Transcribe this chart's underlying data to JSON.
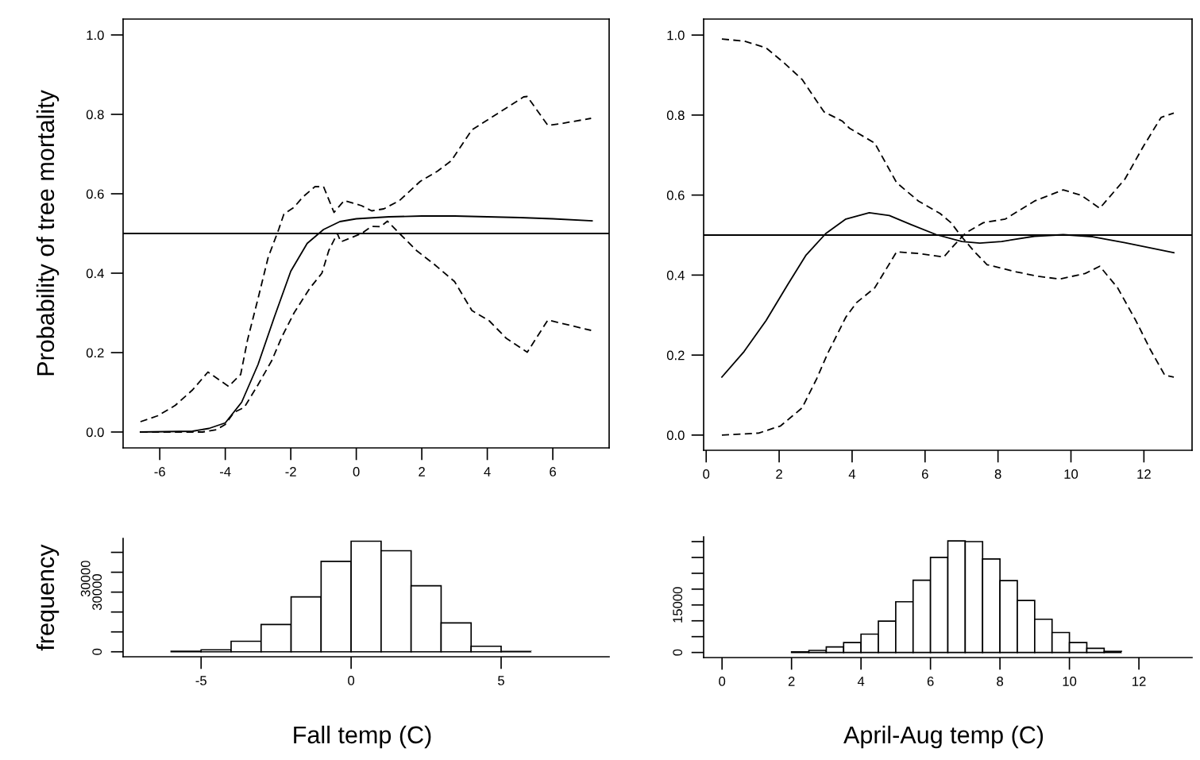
{
  "chart_data": [
    {
      "type": "line",
      "ylabel": "Probability of tree mortality",
      "xlim": [
        -7.12,
        7.72
      ],
      "ylim": [
        -0.04,
        1.04
      ],
      "xticks": [
        -6,
        -4,
        -2,
        0,
        2,
        4,
        6
      ],
      "yticks": [
        {
          "value": 0,
          "label": "0.0"
        },
        {
          "value": 0.2,
          "label": "0.2"
        },
        {
          "value": 0.4,
          "label": "0.4"
        },
        {
          "value": 0.6,
          "label": "0.6"
        },
        {
          "value": 0.8,
          "label": "0.8"
        },
        {
          "value": 1,
          "label": "1.0"
        }
      ],
      "ref_lines": [
        {
          "axis": "y",
          "value": 0.5,
          "color": "#000000"
        }
      ],
      "series": [
        {
          "color": "#000000",
          "line_style": "solid",
          "x": [
            -6.59,
            -5.0,
            -4.5,
            -4.0,
            -3.5,
            -3.0,
            -2.5,
            -2.0,
            -1.5,
            -1.0,
            -0.5,
            0,
            1,
            2,
            3,
            4,
            5,
            6,
            7.2
          ],
          "values": [
            0,
            0.002,
            0.009,
            0.023,
            0.075,
            0.17,
            0.29,
            0.405,
            0.475,
            0.51,
            0.53,
            0.537,
            0.542,
            0.544,
            0.544,
            0.542,
            0.54,
            0.537,
            0.532
          ]
        },
        {
          "color": "#000000",
          "line_style": "dashed",
          "x": [
            -6.59,
            -6.06,
            -5.53,
            -5.0,
            -4.53,
            -3.9,
            -3.53,
            -3.32,
            -3.0,
            -2.69,
            -2.37,
            -2.21,
            -1.9,
            -1.63,
            -1.26,
            -1.0,
            -0.68,
            -0.37,
            0.16,
            0.47,
            0.84,
            1.32,
            1.95,
            2.48,
            2.9,
            3.53,
            3.95,
            4.37,
            5.11,
            5.22,
            5.85,
            6.27,
            7.17
          ],
          "values": [
            0.026,
            0.041,
            0.067,
            0.106,
            0.151,
            0.115,
            0.145,
            0.232,
            0.336,
            0.44,
            0.51,
            0.549,
            0.566,
            0.592,
            0.618,
            0.618,
            0.553,
            0.583,
            0.57,
            0.557,
            0.562,
            0.583,
            0.631,
            0.657,
            0.683,
            0.761,
            0.783,
            0.805,
            0.844,
            0.845,
            0.772,
            0.777,
            0.79
          ]
        },
        {
          "color": "#000000",
          "line_style": "dashed",
          "x": [
            -6.59,
            -4.69,
            -4.27,
            -4.0,
            -3.74,
            -3.42,
            -3.0,
            -2.58,
            -2.27,
            -1.9,
            -1.42,
            -1.05,
            -0.84,
            -0.58,
            -0.47,
            0.16,
            0.47,
            0.74,
            0.95,
            1.32,
            1.84,
            2.37,
            3.0,
            3.53,
            4.06,
            4.58,
            5.22,
            5.85,
            7.17
          ],
          "values": [
            0,
            0,
            0.006,
            0.019,
            0.049,
            0.062,
            0.119,
            0.18,
            0.24,
            0.3,
            0.362,
            0.4,
            0.457,
            0.5,
            0.479,
            0.5,
            0.518,
            0.517,
            0.531,
            0.5,
            0.457,
            0.423,
            0.379,
            0.306,
            0.28,
            0.236,
            0.201,
            0.282,
            0.256
          ]
        }
      ]
    },
    {
      "type": "line",
      "xlim": [
        -0.07,
        13.32
      ],
      "ylim": [
        -0.038,
        1.04
      ],
      "xticks": [
        0,
        2,
        4,
        6,
        8,
        10,
        12
      ],
      "yticks": [
        {
          "value": 0,
          "label": "0.0"
        },
        {
          "value": 0.2,
          "label": "0.2"
        },
        {
          "value": 0.4,
          "label": "0.4"
        },
        {
          "value": 0.6,
          "label": "0.6"
        },
        {
          "value": 0.8,
          "label": "0.8"
        },
        {
          "value": 1,
          "label": "1.0"
        }
      ],
      "ref_lines": [
        {
          "axis": "y",
          "value": 0.5,
          "color": "#000000"
        }
      ],
      "series": [
        {
          "color": "#000000",
          "line_style": "solid",
          "x": [
            0.43,
            1.04,
            1.64,
            2.24,
            2.73,
            3.28,
            3.83,
            4.47,
            5.02,
            5.62,
            6.31,
            7.01,
            7.5,
            8.1,
            9.0,
            9.79,
            10.59,
            11.48,
            12.82
          ],
          "values": [
            0.145,
            0.209,
            0.286,
            0.377,
            0.449,
            0.504,
            0.54,
            0.556,
            0.549,
            0.526,
            0.501,
            0.484,
            0.48,
            0.484,
            0.497,
            0.501,
            0.496,
            0.481,
            0.456
          ]
        },
        {
          "color": "#000000",
          "line_style": "dashed",
          "x": [
            0.43,
            1.04,
            1.64,
            2.14,
            2.63,
            3.23,
            3.73,
            3.93,
            4.62,
            5.22,
            5.82,
            6.41,
            6.71,
            7.01,
            7.36,
            7.7,
            8.5,
            9.1,
            9.69,
            10.39,
            10.79,
            11.28,
            11.78,
            12.18,
            12.57,
            12.82
          ],
          "values": [
            0.99,
            0.985,
            0.968,
            0.93,
            0.889,
            0.808,
            0.785,
            0.767,
            0.73,
            0.631,
            0.585,
            0.554,
            0.531,
            0.495,
            0.458,
            0.426,
            0.408,
            0.397,
            0.39,
            0.404,
            0.422,
            0.368,
            0.286,
            0.213,
            0.15,
            0.145
          ]
        },
        {
          "color": "#000000",
          "line_style": "dashed",
          "x": [
            0.43,
            1.44,
            2.04,
            2.63,
            3.03,
            3.33,
            3.83,
            4.12,
            4.62,
            5.22,
            5.82,
            6.51,
            6.81,
            7.11,
            7.6,
            8.2,
            9.0,
            9.79,
            10.29,
            10.79,
            11.48,
            11.98,
            12.47,
            12.82
          ],
          "values": [
            0,
            0.005,
            0.023,
            0.068,
            0.141,
            0.204,
            0.295,
            0.331,
            0.368,
            0.458,
            0.454,
            0.445,
            0.476,
            0.505,
            0.531,
            0.54,
            0.585,
            0.613,
            0.599,
            0.567,
            0.64,
            0.721,
            0.794,
            0.805
          ]
        }
      ]
    },
    {
      "type": "histogram",
      "ylabel": "frequency",
      "xlabel": "Fall temp (C)",
      "color": "#ffffff",
      "xlim": [
        -7.6,
        8.6
      ],
      "ylim": [
        -2500,
        57000
      ],
      "xticks": [
        -5,
        0,
        5
      ],
      "yticks": [
        0,
        {
          "value": 10000,
          "label": null
        },
        {
          "value": 20000,
          "label": null
        },
        30000,
        {
          "value": 40000,
          "label": null
        },
        {
          "value": 50000,
          "label": null
        }
      ],
      "annotations": [
        "30000"
      ],
      "bins": [
        -7,
        -6,
        -5,
        -4,
        -3,
        -2,
        -1,
        0,
        1,
        2,
        3,
        4,
        5,
        6,
        7,
        8
      ],
      "values": [
        0,
        300,
        1000,
        5300,
        13700,
        27600,
        45500,
        55600,
        50800,
        33200,
        14500,
        2800,
        200,
        0,
        0
      ]
    },
    {
      "type": "histogram",
      "xlabel": "April-Aug temp (C)",
      "color": "#ffffff",
      "xlim": [
        -0.53,
        13.53
      ],
      "ylim": [
        -1600,
        36500
      ],
      "xticks": [
        0,
        2,
        4,
        6,
        8,
        10,
        12
      ],
      "yticks": [
        0,
        {
          "value": 5000,
          "label": null
        },
        {
          "value": 10000,
          "label": null
        },
        15000,
        {
          "value": 20000,
          "label": null
        },
        {
          "value": 25000,
          "label": null
        },
        {
          "value": 30000,
          "label": null
        },
        {
          "value": 35000,
          "label": null
        }
      ],
      "bins": [
        0,
        0.5,
        1,
        1.5,
        2,
        2.5,
        3,
        3.5,
        4,
        4.5,
        5,
        5.5,
        6,
        6.5,
        7,
        7.5,
        8,
        8.5,
        9,
        9.5,
        10,
        10.5,
        11,
        11.5,
        12,
        12.5,
        13
      ],
      "values": [
        0,
        0,
        0,
        0,
        200,
        650,
        1750,
        3150,
        5800,
        9900,
        16000,
        22800,
        30000,
        35200,
        35000,
        29500,
        22700,
        16400,
        10500,
        6300,
        3150,
        1300,
        350,
        0,
        0,
        0
      ]
    }
  ]
}
